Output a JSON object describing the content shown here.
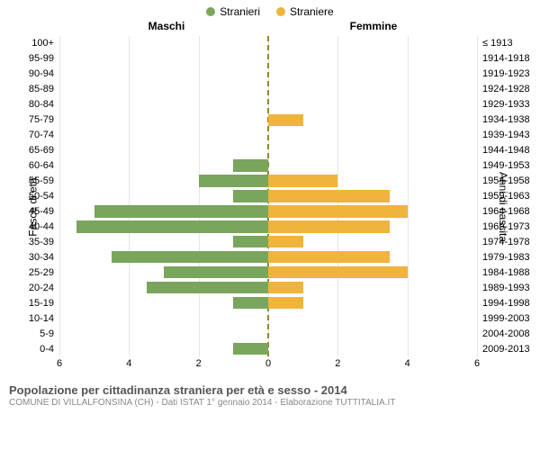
{
  "legend": {
    "male": {
      "label": "Stranieri",
      "color": "#7aa55c"
    },
    "female": {
      "label": "Straniere",
      "color": "#f0b33b"
    }
  },
  "column_headers": {
    "left": "Maschi",
    "right": "Femmine"
  },
  "y_axis_titles": {
    "left": "Fasce di età",
    "right": "Anni di nascita"
  },
  "x_axis": {
    "max": 6,
    "ticks": [
      6,
      4,
      2,
      0,
      2,
      4,
      6
    ],
    "grid_color": "#e6e6e6",
    "center_color": "#8a8a2a"
  },
  "rows": [
    {
      "age": "100+",
      "birth": "≤ 1913",
      "m": 0,
      "f": 0
    },
    {
      "age": "95-99",
      "birth": "1914-1918",
      "m": 0,
      "f": 0
    },
    {
      "age": "90-94",
      "birth": "1919-1923",
      "m": 0,
      "f": 0
    },
    {
      "age": "85-89",
      "birth": "1924-1928",
      "m": 0,
      "f": 0
    },
    {
      "age": "80-84",
      "birth": "1929-1933",
      "m": 0,
      "f": 0
    },
    {
      "age": "75-79",
      "birth": "1934-1938",
      "m": 0,
      "f": 1
    },
    {
      "age": "70-74",
      "birth": "1939-1943",
      "m": 0,
      "f": 0
    },
    {
      "age": "65-69",
      "birth": "1944-1948",
      "m": 0,
      "f": 0
    },
    {
      "age": "60-64",
      "birth": "1949-1953",
      "m": 1,
      "f": 0
    },
    {
      "age": "55-59",
      "birth": "1954-1958",
      "m": 2,
      "f": 2
    },
    {
      "age": "50-54",
      "birth": "1959-1963",
      "m": 1,
      "f": 3.5
    },
    {
      "age": "45-49",
      "birth": "1964-1968",
      "m": 5,
      "f": 4
    },
    {
      "age": "40-44",
      "birth": "1969-1973",
      "m": 5.5,
      "f": 3.5
    },
    {
      "age": "35-39",
      "birth": "1974-1978",
      "m": 1,
      "f": 1
    },
    {
      "age": "30-34",
      "birth": "1979-1983",
      "m": 4.5,
      "f": 3.5
    },
    {
      "age": "25-29",
      "birth": "1984-1988",
      "m": 3,
      "f": 4
    },
    {
      "age": "20-24",
      "birth": "1989-1993",
      "m": 3.5,
      "f": 1
    },
    {
      "age": "15-19",
      "birth": "1994-1998",
      "m": 1,
      "f": 1
    },
    {
      "age": "10-14",
      "birth": "1999-2003",
      "m": 0,
      "f": 0
    },
    {
      "age": "5-9",
      "birth": "2004-2008",
      "m": 0,
      "f": 0
    },
    {
      "age": "0-4",
      "birth": "2009-2013",
      "m": 1,
      "f": 0
    }
  ],
  "chart": {
    "type": "population-pyramid",
    "background_color": "#ffffff"
  },
  "footer": {
    "title": "Popolazione per cittadinanza straniera per età e sesso - 2014",
    "subtitle": "COMUNE DI VILLALFONSINA (CH) - Dati ISTAT 1° gennaio 2014 - Elaborazione TUTTITALIA.IT"
  }
}
